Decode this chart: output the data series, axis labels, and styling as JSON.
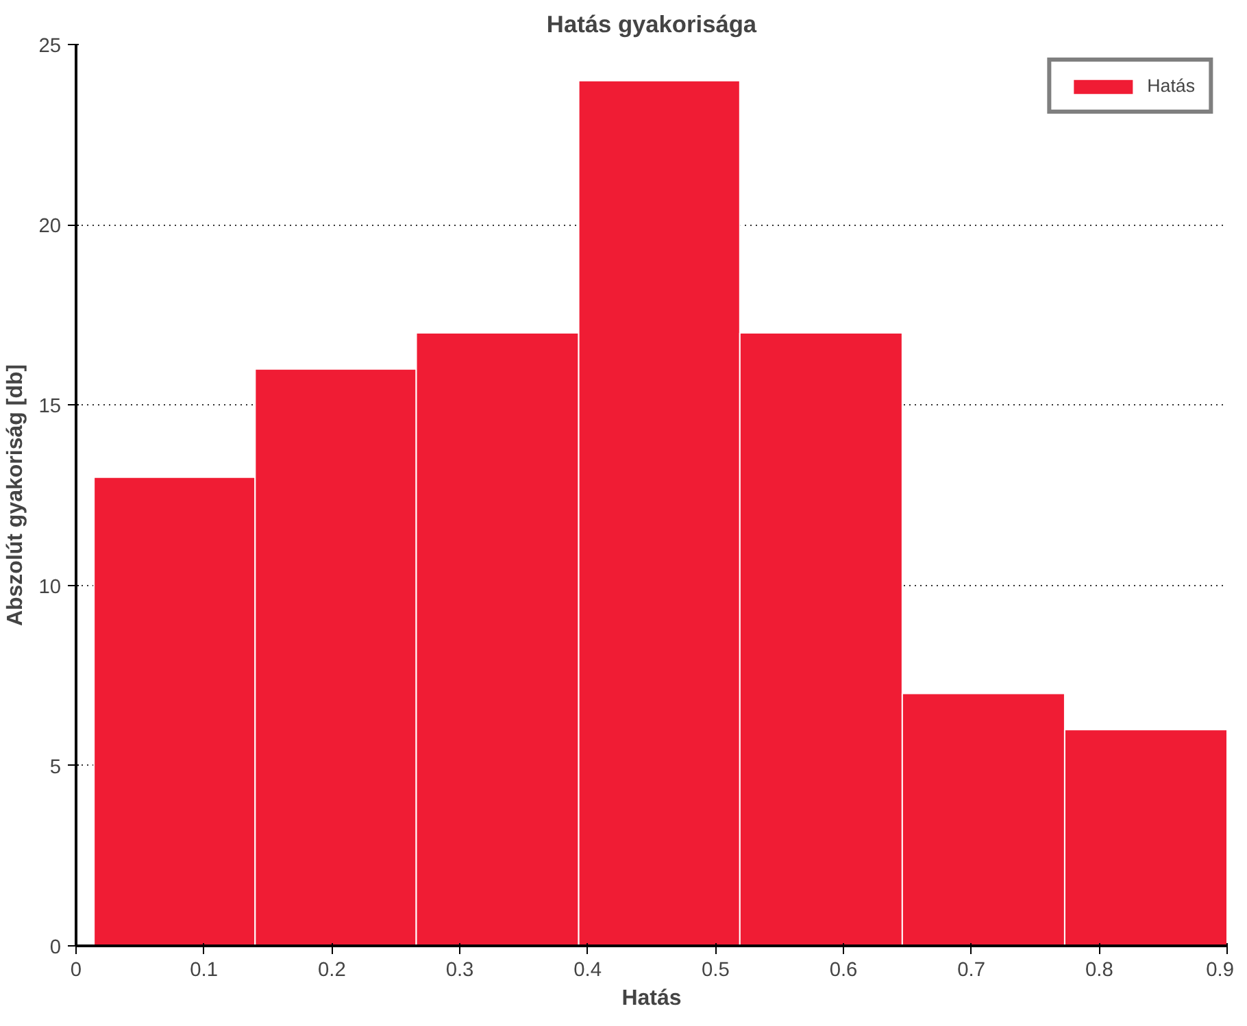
{
  "chart_data": {
    "type": "histogram",
    "title": "Hatás gyakorisága",
    "xlabel": "Hatás",
    "ylabel": "Abszolút gyakoriság [db]",
    "bins": [
      0.014,
      0.14,
      0.266,
      0.393,
      0.519,
      0.646,
      0.773,
      0.9
    ],
    "series": [
      {
        "name": "Hatás",
        "color": "#f01c34",
        "values": [
          13,
          16,
          17,
          24,
          17,
          7,
          6
        ]
      }
    ],
    "xlim": [
      0,
      0.9
    ],
    "xticks": [
      0,
      0.1,
      0.2,
      0.3,
      0.4,
      0.5,
      0.6,
      0.7,
      0.8,
      0.9
    ],
    "ylim": [
      0,
      25
    ],
    "yticks": [
      0,
      5,
      10,
      15,
      20,
      25
    ],
    "grid": "y",
    "legend": "top right"
  }
}
